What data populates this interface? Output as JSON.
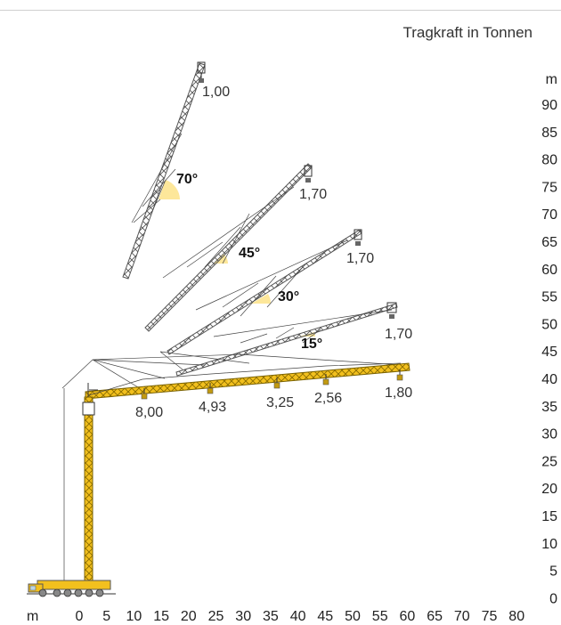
{
  "title": "Tragkraft in Tonnen",
  "axes": {
    "y_unit": "m",
    "x_unit": "m",
    "y_ticks": [
      "90",
      "85",
      "80",
      "75",
      "70",
      "65",
      "60",
      "55",
      "50",
      "45",
      "40",
      "35",
      "30",
      "25",
      "20",
      "15",
      "10",
      "5",
      "0"
    ],
    "x_ticks": [
      "0",
      "5",
      "10",
      "15",
      "20",
      "25",
      "30",
      "35",
      "40",
      "45",
      "50",
      "55",
      "60",
      "65",
      "70",
      "75",
      "80"
    ]
  },
  "colors": {
    "boom_yellow": "#f2c01e",
    "angle_fill": "#fde79a",
    "lattice_grey": "#555555"
  },
  "jibs": [
    {
      "angle": "70°",
      "tip_load": "1,00"
    },
    {
      "angle": "45°",
      "tip_load": "1,70"
    },
    {
      "angle": "30°",
      "tip_load": "1,70"
    },
    {
      "angle": "15°",
      "tip_load": "1,70"
    }
  ],
  "horizontal_jib_loads": [
    "8,00",
    "4,93",
    "3,25",
    "2,56",
    "1,80"
  ]
}
